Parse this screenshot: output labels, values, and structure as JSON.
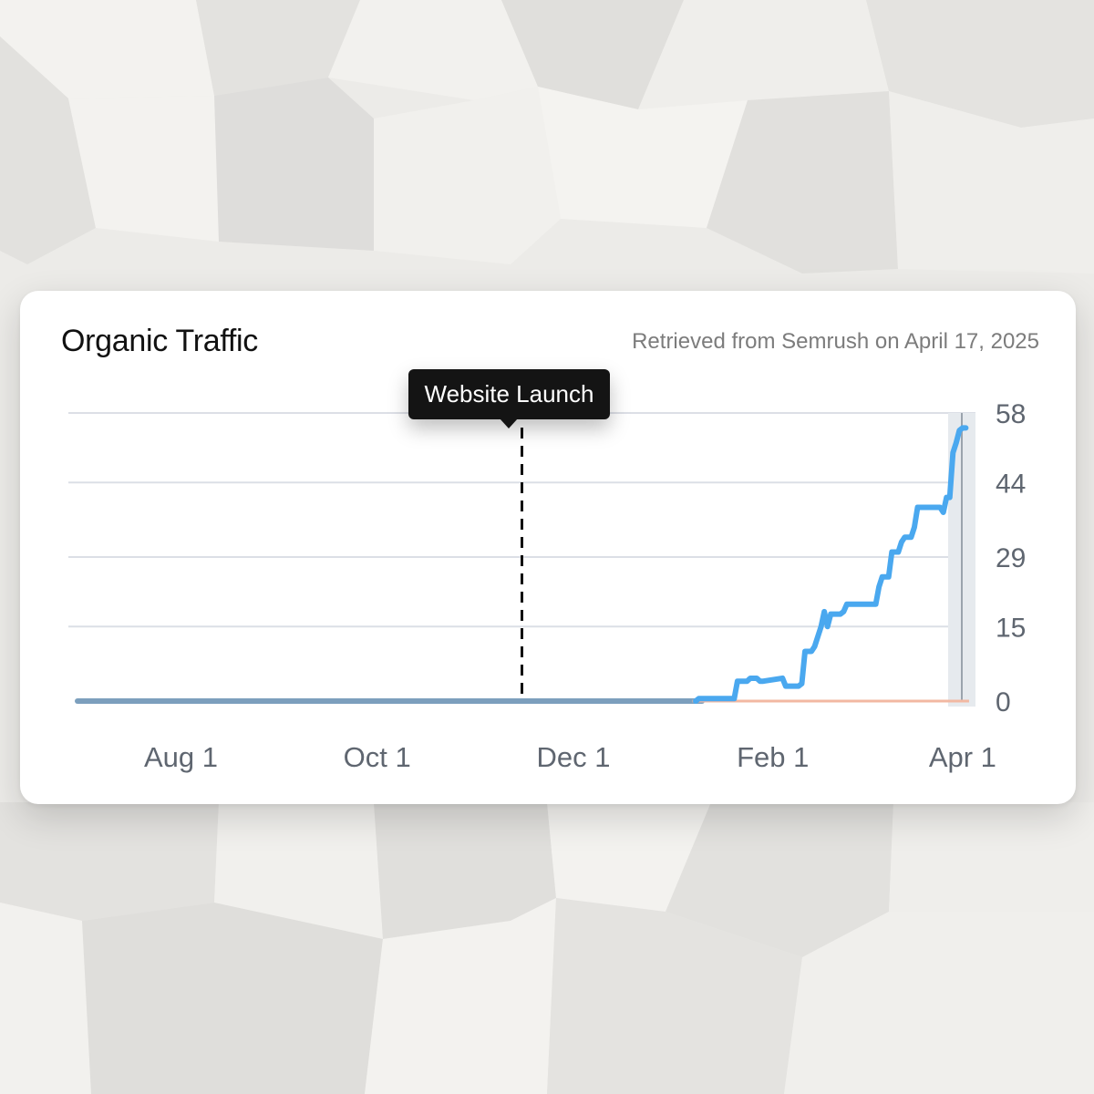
{
  "card": {
    "title": "Organic Traffic",
    "source": "Retrieved from Semrush on April 17, 2025"
  },
  "annotation": {
    "label": "Website Launch",
    "date": "2024-11-15"
  },
  "colors": {
    "traffic_line": "#4aa8ef",
    "baseline_line": "#7c9fbd",
    "secondary_line": "#f2b8a2",
    "gridline": "#dcdfe6",
    "background": "#ecebe8",
    "card": "#ffffff"
  },
  "chart_data": {
    "type": "line",
    "title": "Organic Traffic",
    "xlabel": "",
    "ylabel": "",
    "x_ticks": [
      "Aug 1",
      "Oct 1",
      "Dec 1",
      "Feb 1",
      "Apr 1"
    ],
    "x_tick_dates": [
      "2024-08-01",
      "2024-10-01",
      "2024-12-01",
      "2025-02-01",
      "2025-04-01"
    ],
    "xlim": [
      "2024-06-27",
      "2025-04-05"
    ],
    "y_ticks": [
      0,
      15,
      29,
      44,
      58
    ],
    "ylim": [
      0,
      58
    ],
    "y_axis_position": "right",
    "grid": true,
    "series": [
      {
        "values_x": [
          "2024-06-27",
          "2025-01-08",
          "2025-01-09",
          "2025-01-10",
          "2025-01-20",
          "2025-01-21",
          "2025-01-24",
          "2025-01-25",
          "2025-01-27",
          "2025-01-28",
          "2025-01-29",
          "2025-02-04",
          "2025-02-05",
          "2025-02-09",
          "2025-02-10",
          "2025-02-11",
          "2025-02-13",
          "2025-02-14",
          "2025-02-16",
          "2025-02-17",
          "2025-02-18",
          "2025-02-19",
          "2025-02-22",
          "2025-02-23",
          "2025-02-24",
          "2025-03-05",
          "2025-03-06",
          "2025-03-07",
          "2025-03-09",
          "2025-03-10",
          "2025-03-12",
          "2025-03-13",
          "2025-03-14",
          "2025-03-16",
          "2025-03-17",
          "2025-03-18",
          "2025-03-19",
          "2025-03-25",
          "2025-03-26",
          "2025-03-27",
          "2025-03-28",
          "2025-03-29",
          "2025-03-30",
          "2025-03-31",
          "2025-04-01",
          "2025-04-02"
        ],
        "values_y": [
          0,
          0,
          0.5,
          0.5,
          0.5,
          4,
          4,
          4.6,
          4.6,
          4,
          4,
          4.6,
          3,
          3,
          3.5,
          10,
          10,
          11,
          15,
          18,
          15,
          17.5,
          17.5,
          18,
          19.5,
          19.5,
          23,
          25,
          25,
          30,
          30,
          32,
          33,
          33,
          35,
          39,
          39,
          39,
          38,
          41,
          41,
          50,
          52,
          54.5,
          55,
          55
        ]
      },
      {
        "values_x": [
          "2025-01-07",
          "2025-04-03"
        ],
        "values_y": [
          0,
          0
        ]
      }
    ]
  }
}
